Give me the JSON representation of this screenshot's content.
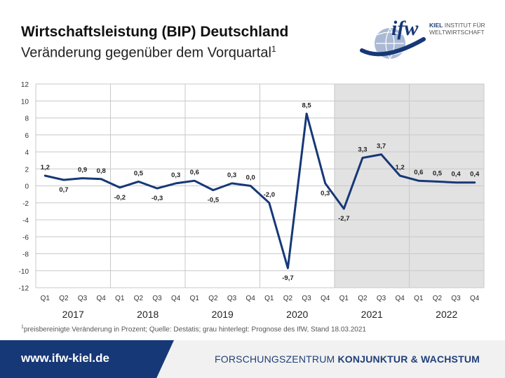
{
  "header": {
    "title": "Wirtschaftsleistung (BIP) Deutschland",
    "subtitle": "Veränderung gegenüber dem Vorquartal",
    "subtitle_sup": "1"
  },
  "logo": {
    "wordmark": "ifw",
    "line1_bold": "KIEL",
    "line1_rest": "INSTITUT FÜR",
    "line2": "WELTWIRTSCHAFT"
  },
  "chart_data": {
    "type": "line",
    "categories": [
      "Q1",
      "Q2",
      "Q3",
      "Q4",
      "Q1",
      "Q2",
      "Q3",
      "Q4",
      "Q1",
      "Q2",
      "Q3",
      "Q4",
      "Q1",
      "Q2",
      "Q3",
      "Q4",
      "Q1",
      "Q2",
      "Q3",
      "Q4",
      "Q1",
      "Q2",
      "Q3",
      "Q4"
    ],
    "years": [
      "2017",
      "2018",
      "2019",
      "2020",
      "2021",
      "2022"
    ],
    "values": [
      1.2,
      0.7,
      0.9,
      0.8,
      -0.2,
      0.5,
      -0.3,
      0.3,
      0.6,
      -0.5,
      0.3,
      0.0,
      -2.0,
      -9.7,
      8.5,
      0.3,
      -2.7,
      3.3,
      3.7,
      1.2,
      0.6,
      0.5,
      0.4,
      0.4
    ],
    "labels": [
      "1,2",
      "0,7",
      "0,9",
      "0,8",
      "-0,2",
      "0,5",
      "-0,3",
      "0,3",
      "0,6",
      "-0,5",
      "0,3",
      "0,0",
      "-2,0",
      "-9,7",
      "8,5",
      "0,3",
      "-2,7",
      "3,3",
      "3,7",
      "1,2",
      "0,6",
      "0,5",
      "0,4",
      "0,4"
    ],
    "yticks": [
      "12",
      "10",
      "8",
      "6",
      "4",
      "2",
      "0",
      "-2",
      "-4",
      "-6",
      "-8",
      "-10",
      "-12"
    ],
    "ylim": [
      -12,
      12
    ],
    "ystep": 2,
    "forecast_start_index": 16,
    "grid": true,
    "colors": {
      "line": "#163877",
      "forecast_bg": "#e2e2e2",
      "grid": "#c8c8c8"
    }
  },
  "footnote": {
    "sup": "1",
    "text": "preisbereinigte Veränderung in Prozent; Quelle: Destatis; grau hinterlegt: Prognose des IfW, Stand 18.03.2021"
  },
  "footer": {
    "url": "www.ifw-kiel.de",
    "center_light": "FORSCHUNGSZENTRUM",
    "center_bold": "KONJUNKTUR & WACHSTUM",
    "colors": {
      "band": "#163877",
      "text": "#1f3f7a"
    }
  }
}
